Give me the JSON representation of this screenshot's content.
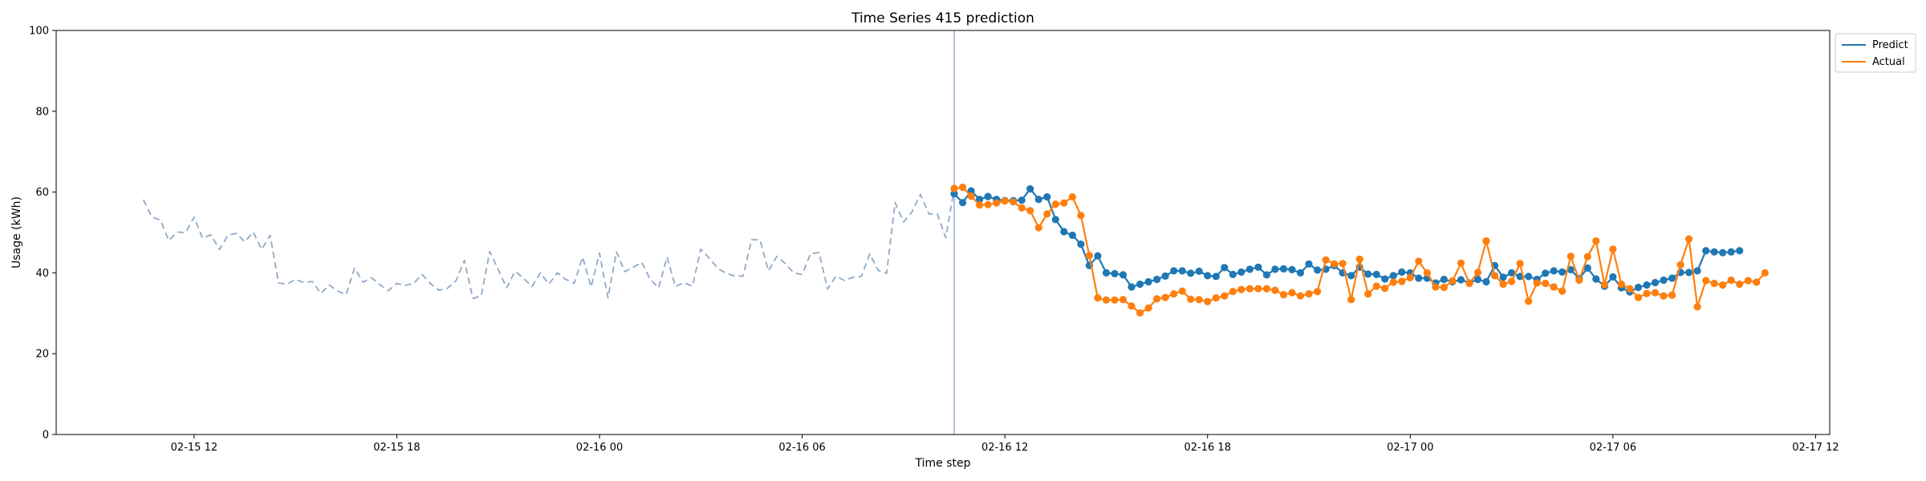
{
  "chart_data": {
    "type": "line",
    "title": "Time Series 415 prediction",
    "xlabel": "Time step",
    "ylabel": "Usage (kWh)",
    "ylim": [
      0,
      100
    ],
    "xlim": [
      "2026-02-15 07:55",
      "2026-02-17 12:25"
    ],
    "yticks": [
      0,
      20,
      40,
      60,
      80,
      100
    ],
    "xticks": [
      {
        "t": "2026-02-15 12:00",
        "label": "02-15 12"
      },
      {
        "t": "2026-02-15 18:00",
        "label": "02-15 18"
      },
      {
        "t": "2026-02-16 00:00",
        "label": "02-16 00"
      },
      {
        "t": "2026-02-16 06:00",
        "label": "02-16 06"
      },
      {
        "t": "2026-02-16 12:00",
        "label": "02-16 12"
      },
      {
        "t": "2026-02-16 18:00",
        "label": "02-16 18"
      },
      {
        "t": "2026-02-17 00:00",
        "label": "02-17 00"
      },
      {
        "t": "2026-02-17 06:00",
        "label": "02-17 06"
      },
      {
        "t": "2026-02-17 12:00",
        "label": "02-17 12"
      }
    ],
    "grid": false,
    "legend_position": "outside-top-right",
    "split_time": "2026-02-16 10:30",
    "series": [
      {
        "name": "",
        "role": "history",
        "style": "dashed",
        "color": "#8fa9c8",
        "start": "2026-02-15 10:30",
        "step_minutes": 15,
        "values": [
          58.1,
          53.8,
          53.1,
          48.0,
          50.1,
          50.0,
          53.8,
          48.6,
          49.4,
          45.8,
          49.3,
          49.8,
          47.7,
          50.1,
          45.8,
          49.3,
          37.5,
          37.2,
          38.4,
          37.6,
          37.9,
          34.9,
          37.0,
          35.5,
          34.6,
          41.2,
          37.7,
          38.8,
          37.1,
          35.6,
          37.4,
          36.9,
          37.4,
          39.6,
          37.3,
          35.7,
          36.2,
          38.0,
          43.1,
          33.7,
          34.3,
          45.3,
          40.9,
          36.3,
          40.4,
          38.7,
          36.6,
          40.0,
          37.2,
          40.0,
          38.4,
          37.4,
          43.9,
          36.5,
          44.9,
          33.8,
          45.2,
          40.3,
          41.4,
          42.6,
          38.4,
          36.3,
          43.9,
          36.6,
          37.6,
          36.7,
          45.9,
          43.7,
          41.1,
          39.9,
          39.2,
          39.2,
          48.2,
          48.2,
          40.5,
          44.1,
          42.3,
          40.0,
          39.6,
          44.8,
          45.0,
          36.0,
          39.2,
          38.1,
          38.9,
          39.1,
          44.7,
          40.6,
          39.9,
          57.4,
          52.6,
          55.1,
          59.4,
          54.6,
          54.6,
          48.7,
          60.9
        ]
      },
      {
        "name": "Predict",
        "role": "prediction",
        "style": "line-marker",
        "color": "#1f77b4",
        "start": "2026-02-16 10:30",
        "step_minutes": 15,
        "values": [
          59.6,
          57.4,
          60.3,
          58.2,
          58.9,
          58.2,
          57.9,
          57.9,
          58.0,
          60.8,
          58.2,
          58.8,
          53.2,
          50.2,
          49.3,
          47.1,
          41.8,
          44.2,
          40.0,
          39.8,
          39.5,
          36.5,
          37.2,
          37.8,
          38.4,
          39.2,
          40.5,
          40.5,
          39.9,
          40.4,
          39.3,
          39.1,
          41.3,
          39.6,
          40.2,
          40.9,
          41.4,
          39.5,
          40.9,
          41.0,
          40.8,
          40.0,
          42.2,
          40.7,
          40.9,
          41.8,
          40.0,
          39.3,
          41.4,
          39.7,
          39.6,
          38.5,
          39.3,
          40.2,
          40.0,
          38.7,
          38.7,
          37.5,
          38.4,
          37.8,
          38.3,
          37.5,
          38.4,
          37.8,
          41.8,
          38.9,
          40.0,
          39.1,
          39.1,
          38.4,
          39.9,
          40.5,
          40.2,
          40.8,
          38.6,
          41.2,
          38.5,
          36.7,
          39.0,
          36.3,
          35.3,
          36.4,
          37.0,
          37.6,
          38.2,
          38.7,
          40.1,
          40.1,
          40.5,
          45.5,
          45.2,
          45.0,
          45.2,
          45.5
        ]
      },
      {
        "name": "Actual",
        "role": "actual",
        "style": "line-marker",
        "color": "#ff7f0e",
        "start": "2026-02-16 10:30",
        "step_minutes": 15,
        "values": [
          60.9,
          61.2,
          59.0,
          56.8,
          56.9,
          57.3,
          57.8,
          57.6,
          56.1,
          55.4,
          51.2,
          54.6,
          57.0,
          57.3,
          58.8,
          54.2,
          44.3,
          33.8,
          33.3,
          33.3,
          33.4,
          31.8,
          30.1,
          31.3,
          33.6,
          33.9,
          34.8,
          35.5,
          33.5,
          33.4,
          32.9,
          33.8,
          34.3,
          35.4,
          35.9,
          36.1,
          36.1,
          36.1,
          35.7,
          34.6,
          35.1,
          34.3,
          34.8,
          35.4,
          43.2,
          42.2,
          42.3,
          33.4,
          43.4,
          34.8,
          36.7,
          36.2,
          37.7,
          37.9,
          38.8,
          42.9,
          40.0,
          36.5,
          36.4,
          38.0,
          42.4,
          37.4,
          40.1,
          47.9,
          39.3,
          37.2,
          37.9,
          42.3,
          33.0,
          37.5,
          37.4,
          36.5,
          35.5,
          44.1,
          38.2,
          44.0,
          47.9,
          37.1,
          45.9,
          37.2,
          36.1,
          33.9,
          34.9,
          35.1,
          34.3,
          34.5,
          42.0,
          48.4,
          31.6,
          38.1,
          37.4,
          37.0,
          38.2,
          37.2,
          38.1,
          37.7,
          40.0
        ]
      }
    ]
  }
}
